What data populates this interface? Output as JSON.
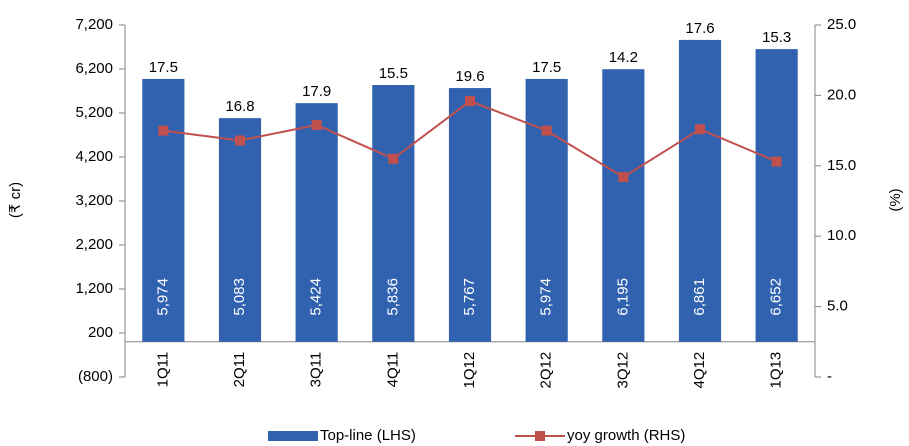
{
  "chart_data": {
    "type": "bar",
    "categories": [
      "1Q11",
      "2Q11",
      "3Q11",
      "4Q11",
      "1Q12",
      "2Q12",
      "3Q12",
      "4Q12",
      "1Q13"
    ],
    "series": [
      {
        "name": "Top-line (LHS)",
        "color": "#3162b0",
        "type": "bar",
        "values": [
          5974,
          5083,
          5424,
          5836,
          5767,
          5974,
          6195,
          6861,
          6652
        ],
        "value_labels": [
          "5,974",
          "5,083",
          "5,424",
          "5,836",
          "5,767",
          "5,974",
          "6,195",
          "6,861",
          "6,652"
        ]
      },
      {
        "name": "yoy growth (RHS)",
        "color": "#c0504d",
        "type": "line",
        "axis": "y2",
        "values": [
          17.5,
          16.8,
          17.9,
          15.5,
          19.6,
          17.5,
          14.2,
          17.6,
          15.3
        ]
      }
    ],
    "y_label": "(₹ cr)",
    "y2_label": "(%)",
    "ylim": [
      -800,
      7200
    ],
    "yticks": [
      {
        "value": -800,
        "label": "(800)"
      },
      200,
      {
        "value": 1200,
        "label": "1,200"
      },
      {
        "value": 2200,
        "label": "2,200"
      },
      {
        "value": 3200,
        "label": "3,200"
      },
      {
        "value": 4200,
        "label": "4,200"
      },
      {
        "value": 5200,
        "label": "5,200"
      },
      {
        "value": 6200,
        "label": "6,200"
      },
      {
        "value": 7200,
        "label": "7,200"
      }
    ],
    "y2lim": [
      0,
      25
    ],
    "y2ticks": [
      {
        "value": 0,
        "label": "-"
      },
      {
        "value": 5,
        "label": "5.0"
      },
      {
        "value": 10,
        "label": "10.0"
      },
      {
        "value": 15,
        "label": "15.0"
      },
      {
        "value": 20,
        "label": "20.0"
      },
      {
        "value": 25,
        "label": "25.0"
      }
    ],
    "grid": false,
    "legend": "bottom"
  }
}
